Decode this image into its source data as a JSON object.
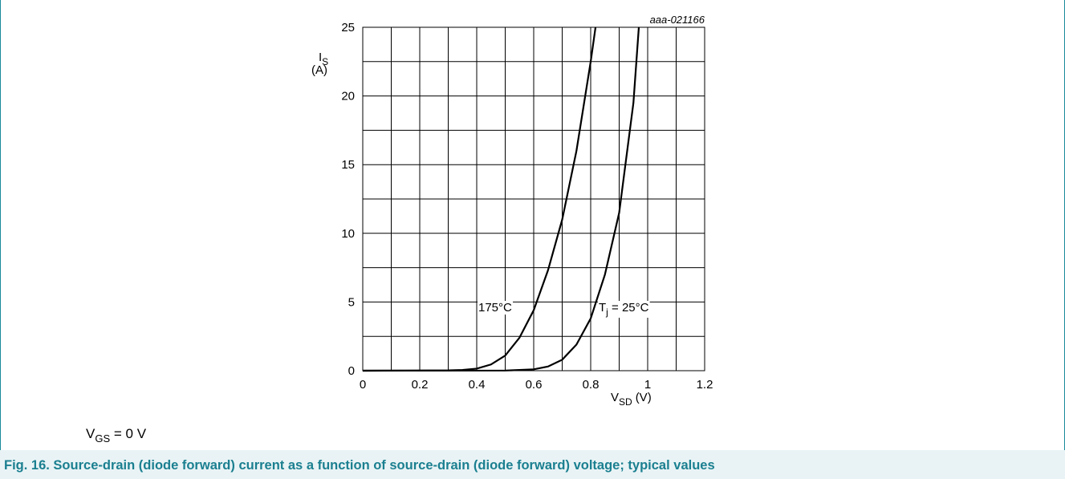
{
  "chart_data": {
    "type": "line",
    "code": "aaa-021166",
    "y_label": {
      "main": "I",
      "sub": "S",
      "unit": "(A)"
    },
    "x_label": {
      "main": "V",
      "sub": "SD",
      "unit": "(V)"
    },
    "xlim": [
      0,
      1.2
    ],
    "xticks": [
      0,
      0.2,
      0.4,
      0.6,
      0.8,
      1,
      1.2
    ],
    "xminor": [
      0.1,
      0.3,
      0.5,
      0.7,
      0.9,
      1.1
    ],
    "ylim": [
      0,
      25
    ],
    "yticks": [
      0,
      5,
      10,
      15,
      20,
      25
    ],
    "yminor": [
      2.5,
      7.5,
      12.5,
      17.5,
      22.5
    ],
    "grid": true,
    "series": [
      {
        "color": "#000000",
        "x": [
          0,
          0.3,
          0.35,
          0.4,
          0.45,
          0.5,
          0.55,
          0.6,
          0.65,
          0.7,
          0.75,
          0.8,
          0.817
        ],
        "values": [
          0,
          0.02,
          0.05,
          0.15,
          0.45,
          1.1,
          2.4,
          4.4,
          7.3,
          11,
          16,
          22.5,
          25
        ]
      },
      {
        "color": "#000000",
        "x": [
          0,
          0.5,
          0.6,
          0.65,
          0.7,
          0.75,
          0.8,
          0.85,
          0.9,
          0.95,
          0.969
        ],
        "values": [
          0,
          0.01,
          0.1,
          0.3,
          0.8,
          1.9,
          3.8,
          7,
          11.5,
          19.5,
          25
        ]
      }
    ],
    "annotations": [
      {
        "text": "175°C"
      },
      {
        "main": "T",
        "sub": "j",
        "rest": " = 25°C"
      }
    ],
    "condition": {
      "main": "V",
      "sub": "GS",
      "rest": " = 0 V"
    },
    "caption": "Fig. 16.  Source-drain (diode forward) current as a function of source-drain (diode forward) voltage; typical values"
  }
}
